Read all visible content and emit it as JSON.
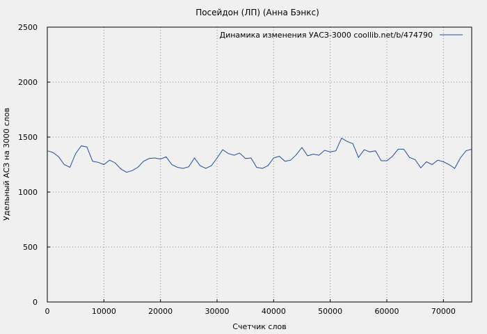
{
  "chart_data": {
    "type": "line",
    "title": "Посейдон (ЛП) (Анна Бэнкс)",
    "xlabel": "Счетчик слов",
    "ylabel": "Удельный АСЗ на 3000 слов",
    "xlim": [
      0,
      75000
    ],
    "ylim": [
      0,
      2500
    ],
    "x_ticks": [
      0,
      10000,
      20000,
      30000,
      40000,
      50000,
      60000,
      70000
    ],
    "y_ticks": [
      0,
      500,
      1000,
      1500,
      2000,
      2500
    ],
    "grid": true,
    "legend_position": "top-right",
    "series": [
      {
        "name": "Динамика изменения УАСЗ-3000  coollib.net/b/474790",
        "color": "#1f4e9a",
        "x": [
          0,
          1000,
          2000,
          3000,
          4000,
          5000,
          6000,
          7000,
          8000,
          9000,
          10000,
          11000,
          12000,
          13000,
          14000,
          15000,
          16000,
          17000,
          18000,
          19000,
          20000,
          21000,
          22000,
          23000,
          24000,
          25000,
          26000,
          27000,
          28000,
          29000,
          30000,
          31000,
          32000,
          33000,
          34000,
          35000,
          36000,
          37000,
          38000,
          39000,
          40000,
          41000,
          42000,
          43000,
          44000,
          45000,
          46000,
          47000,
          48000,
          49000,
          50000,
          51000,
          52000,
          53000,
          54000,
          55000,
          56000,
          57000,
          58000,
          59000,
          60000,
          61000,
          62000,
          63000,
          64000,
          65000,
          66000,
          67000,
          68000,
          69000,
          70000,
          71000,
          72000,
          73000,
          74000,
          75000
        ],
        "y": [
          1375,
          1360,
          1320,
          1250,
          1225,
          1350,
          1420,
          1410,
          1280,
          1270,
          1250,
          1290,
          1265,
          1210,
          1180,
          1195,
          1225,
          1280,
          1305,
          1310,
          1300,
          1320,
          1250,
          1225,
          1215,
          1230,
          1310,
          1240,
          1215,
          1240,
          1310,
          1385,
          1350,
          1335,
          1355,
          1305,
          1310,
          1225,
          1215,
          1240,
          1310,
          1325,
          1280,
          1290,
          1340,
          1405,
          1330,
          1345,
          1335,
          1380,
          1365,
          1375,
          1490,
          1460,
          1440,
          1315,
          1385,
          1365,
          1375,
          1285,
          1285,
          1325,
          1390,
          1390,
          1315,
          1295,
          1220,
          1275,
          1250,
          1290,
          1275,
          1250,
          1215,
          1310,
          1375,
          1390
        ]
      }
    ]
  }
}
